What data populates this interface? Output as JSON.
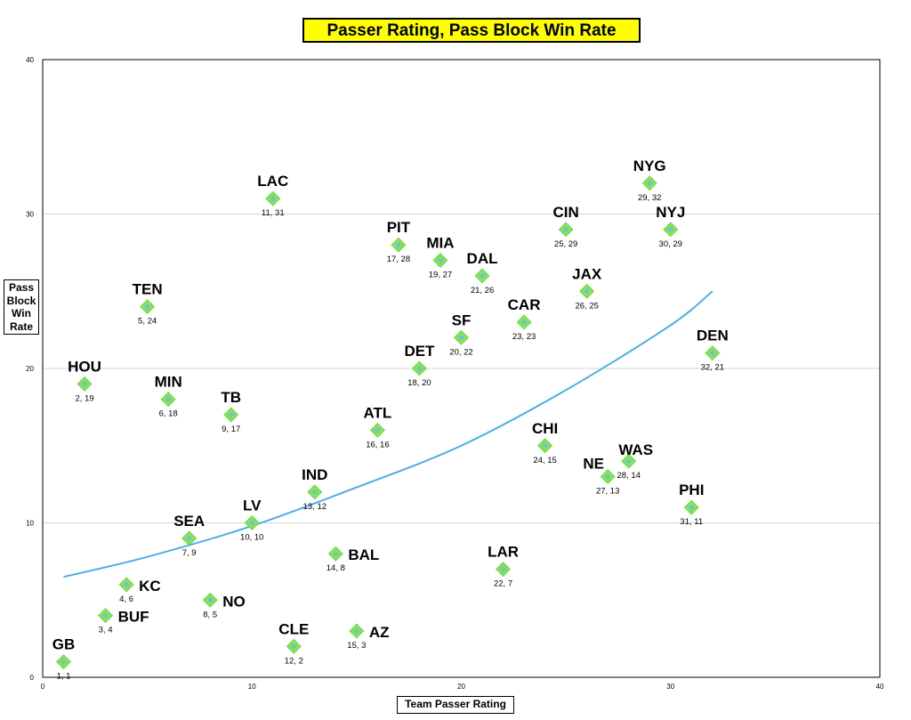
{
  "chart_data": {
    "type": "scatter",
    "title": "Passer Rating, Pass Block Win Rate",
    "xlabel": "Team Passer Rating",
    "ylabel": "Pass Block Win Rate",
    "xlim": [
      0,
      40
    ],
    "ylim": [
      0,
      40
    ],
    "xticks": [
      0,
      10,
      20,
      30,
      40
    ],
    "yticks": [
      0,
      10,
      20,
      30,
      40
    ],
    "grid": "horizontal",
    "marker_color": "#7fe84e",
    "marker_center_color": "#7fb8d8",
    "trendline_color": "#4aaee6",
    "trendline": {
      "type": "exponential",
      "points": [
        [
          1,
          6.5
        ],
        [
          5,
          7.8
        ],
        [
          10,
          9.8
        ],
        [
          15,
          12.3
        ],
        [
          20,
          15.0
        ],
        [
          25,
          18.6
        ],
        [
          30,
          22.8
        ],
        [
          32,
          25.0
        ]
      ]
    },
    "points": [
      {
        "team": "GB",
        "x": 1,
        "y": 1,
        "coords": "1, 1",
        "label_side": "above"
      },
      {
        "team": "HOU",
        "x": 2,
        "y": 19,
        "coords": "2, 19",
        "label_side": "above"
      },
      {
        "team": "BUF",
        "x": 3,
        "y": 4,
        "coords": "3, 4",
        "label_side": "right"
      },
      {
        "team": "KC",
        "x": 4,
        "y": 6,
        "coords": "4, 6",
        "label_side": "right"
      },
      {
        "team": "TEN",
        "x": 5,
        "y": 24,
        "coords": "5, 24",
        "label_side": "above"
      },
      {
        "team": "MIN",
        "x": 6,
        "y": 18,
        "coords": "6, 18",
        "label_side": "above"
      },
      {
        "team": "SEA",
        "x": 7,
        "y": 9,
        "coords": "7, 9",
        "label_side": "above"
      },
      {
        "team": "NO",
        "x": 8,
        "y": 5,
        "coords": "8, 5",
        "label_side": "right"
      },
      {
        "team": "TB",
        "x": 9,
        "y": 17,
        "coords": "9, 17",
        "label_side": "above"
      },
      {
        "team": "LV",
        "x": 10,
        "y": 10,
        "coords": "10, 10",
        "label_side": "above"
      },
      {
        "team": "LAC",
        "x": 11,
        "y": 31,
        "coords": "11, 31",
        "label_side": "above"
      },
      {
        "team": "CLE",
        "x": 12,
        "y": 2,
        "coords": "12, 2",
        "label_side": "above"
      },
      {
        "team": "IND",
        "x": 13,
        "y": 12,
        "coords": "13, 12",
        "label_side": "above"
      },
      {
        "team": "BAL",
        "x": 14,
        "y": 8,
        "coords": "14, 8",
        "label_side": "right"
      },
      {
        "team": "AZ",
        "x": 15,
        "y": 3,
        "coords": "15, 3",
        "label_side": "right"
      },
      {
        "team": "ATL",
        "x": 16,
        "y": 16,
        "coords": "16, 16",
        "label_side": "above"
      },
      {
        "team": "PIT",
        "x": 17,
        "y": 28,
        "coords": "17, 28",
        "label_side": "above"
      },
      {
        "team": "DET",
        "x": 18,
        "y": 20,
        "coords": "18, 20",
        "label_side": "above"
      },
      {
        "team": "MIA",
        "x": 19,
        "y": 27,
        "coords": "19, 27",
        "label_side": "above"
      },
      {
        "team": "SF",
        "x": 20,
        "y": 22,
        "coords": "20, 22",
        "label_side": "above"
      },
      {
        "team": "DAL",
        "x": 21,
        "y": 26,
        "coords": "21, 26",
        "label_side": "above"
      },
      {
        "team": "LAR",
        "x": 22,
        "y": 7,
        "coords": "22, 7",
        "label_side": "above"
      },
      {
        "team": "CAR",
        "x": 23,
        "y": 23,
        "coords": "23, 23",
        "label_side": "above"
      },
      {
        "team": "CHI",
        "x": 24,
        "y": 15,
        "coords": "24, 15",
        "label_side": "above"
      },
      {
        "team": "CIN",
        "x": 25,
        "y": 29,
        "coords": "25, 29",
        "label_side": "above"
      },
      {
        "team": "JAX",
        "x": 26,
        "y": 25,
        "coords": "26, 25",
        "label_side": "above"
      },
      {
        "team": "NE",
        "x": 27,
        "y": 13,
        "coords": "27, 13",
        "label_side": "above-left"
      },
      {
        "team": "WAS",
        "x": 28,
        "y": 14,
        "coords": "28, 14",
        "label_side": "above-right"
      },
      {
        "team": "NYG",
        "x": 29,
        "y": 32,
        "coords": "29, 32",
        "label_side": "above"
      },
      {
        "team": "NYJ",
        "x": 30,
        "y": 29,
        "coords": "30, 29",
        "label_side": "above"
      },
      {
        "team": "PHI",
        "x": 31,
        "y": 11,
        "coords": "31, 11",
        "label_side": "above"
      },
      {
        "team": "DEN",
        "x": 32,
        "y": 21,
        "coords": "32, 21",
        "label_side": "above"
      }
    ]
  }
}
